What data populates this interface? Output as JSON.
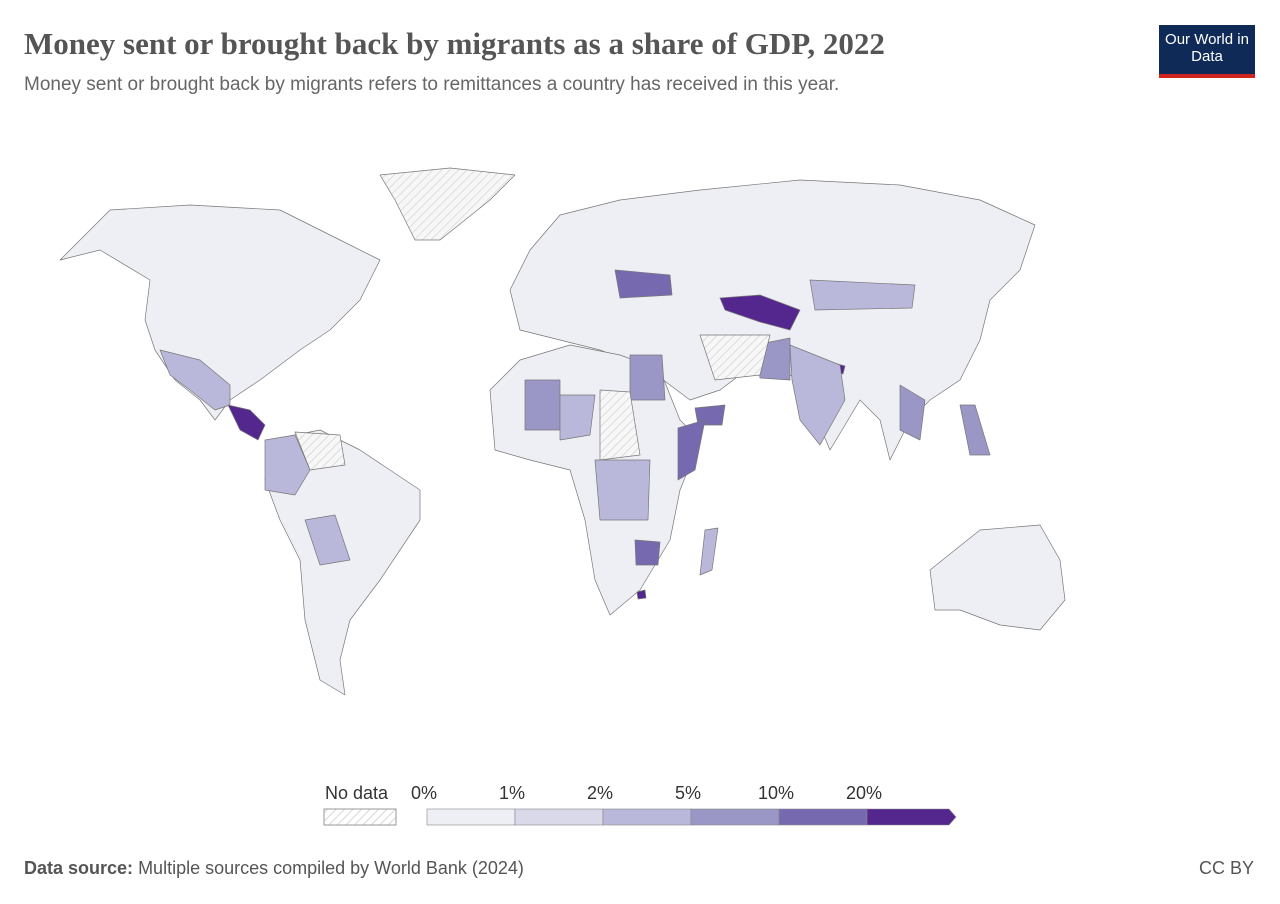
{
  "header": {
    "title": "Money sent or brought back by migrants as a share of GDP, 2022",
    "subtitle": "Money sent or brought back by migrants refers to remittances a country has received in this year.",
    "logo_text": "Our World in Data"
  },
  "legend": {
    "no_data_label": "No data",
    "bins": [
      "0%",
      "1%",
      "2%",
      "5%",
      "10%",
      "20%"
    ],
    "colors": [
      "#eeeef5",
      "#dad9ea",
      "#b9b8da",
      "#9a96c6",
      "#7769b0",
      "#54278f"
    ],
    "no_data_color": "#f7f7f7"
  },
  "map_fills": {
    "north-america": 0,
    "greenland": "nodata",
    "south-america": 0,
    "eurasia": 0,
    "africa": 0,
    "australia": 0,
    "madagascar": 2,
    "mexico": 2,
    "central-america": 5,
    "venezuela": "nodata",
    "bolivia-paraguay": 2,
    "colombia-ecuador": 2,
    "ukraine": 4,
    "central-asia": 5,
    "nepal": 5,
    "mongolia": 2,
    "pakistan": 3,
    "india": 2,
    "afghanistan-iran": "nodata",
    "egypt": 3,
    "sudan": "nodata",
    "yemen": 4,
    "somalia": 4,
    "west-africa": 3,
    "nigeria": 2,
    "congo": 2,
    "zimbabwe": 4,
    "lesotho": 5,
    "philippines": 3,
    "vietnam": 3
  },
  "footer": {
    "source_label": "Data source:",
    "source_text": "Multiple sources compiled by World Bank (2024)",
    "license": "CC BY"
  }
}
